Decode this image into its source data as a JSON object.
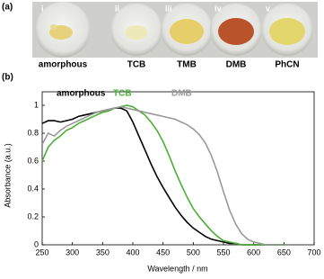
{
  "panel_a": {
    "label": "(a)",
    "samples": [
      {
        "numeral": "i",
        "name": "amorphous"
      },
      {
        "numeral": "ii",
        "name": "TCB"
      },
      {
        "numeral": "iii",
        "name": "TMB"
      },
      {
        "numeral": "iv",
        "name": "DMB"
      },
      {
        "numeral": "v",
        "name": "PhCN"
      }
    ]
  },
  "chart_data": {
    "type": "line",
    "panel_label": "(b)",
    "xlabel": "Wavelength / nm",
    "ylabel": "Absorbance (a.u.)",
    "x": [
      250,
      260,
      270,
      280,
      290,
      300,
      310,
      320,
      330,
      340,
      350,
      360,
      370,
      380,
      390,
      400,
      410,
      420,
      430,
      440,
      450,
      460,
      470,
      480,
      490,
      500,
      510,
      520,
      530,
      540,
      550,
      560,
      570,
      580,
      590,
      600,
      610,
      620,
      630,
      640,
      650
    ],
    "series": [
      {
        "name": "amorphous",
        "color": "#000000",
        "values": [
          0.87,
          0.89,
          0.89,
          0.88,
          0.89,
          0.9,
          0.92,
          0.93,
          0.94,
          0.95,
          0.96,
          0.97,
          0.98,
          0.98,
          0.96,
          0.88,
          0.78,
          0.68,
          0.58,
          0.49,
          0.41,
          0.34,
          0.27,
          0.21,
          0.16,
          0.12,
          0.09,
          0.06,
          0.04,
          0.03,
          0.02,
          0.01,
          0.01,
          0,
          0,
          0,
          0,
          0,
          0,
          0,
          0
        ]
      },
      {
        "name": "TCB",
        "color": "#4caf33",
        "values": [
          0.6,
          0.7,
          0.75,
          0.78,
          0.82,
          0.84,
          0.87,
          0.89,
          0.91,
          0.93,
          0.95,
          0.96,
          0.98,
          0.99,
          1.0,
          0.99,
          0.96,
          0.93,
          0.88,
          0.82,
          0.74,
          0.64,
          0.53,
          0.43,
          0.34,
          0.26,
          0.2,
          0.15,
          0.1,
          0.06,
          0.03,
          0.02,
          0.01,
          0,
          0,
          0,
          0,
          0,
          0,
          0,
          0
        ]
      },
      {
        "name": "DMB",
        "color": "#999999",
        "values": [
          0.72,
          0.8,
          0.78,
          0.82,
          0.85,
          0.87,
          0.89,
          0.91,
          0.93,
          0.95,
          0.96,
          0.97,
          0.98,
          0.99,
          0.98,
          0.97,
          0.96,
          0.95,
          0.94,
          0.93,
          0.92,
          0.91,
          0.9,
          0.88,
          0.86,
          0.83,
          0.79,
          0.73,
          0.64,
          0.52,
          0.38,
          0.25,
          0.15,
          0.08,
          0.04,
          0.02,
          0.01,
          0,
          0,
          0,
          0
        ]
      }
    ],
    "xlim": [
      250,
      700
    ],
    "xticks": [
      250,
      300,
      350,
      400,
      450,
      500,
      550,
      600,
      650,
      700
    ],
    "ylim": [
      0,
      1
    ],
    "yticks": [
      0,
      0.2,
      0.4,
      0.6,
      0.8,
      1
    ]
  }
}
